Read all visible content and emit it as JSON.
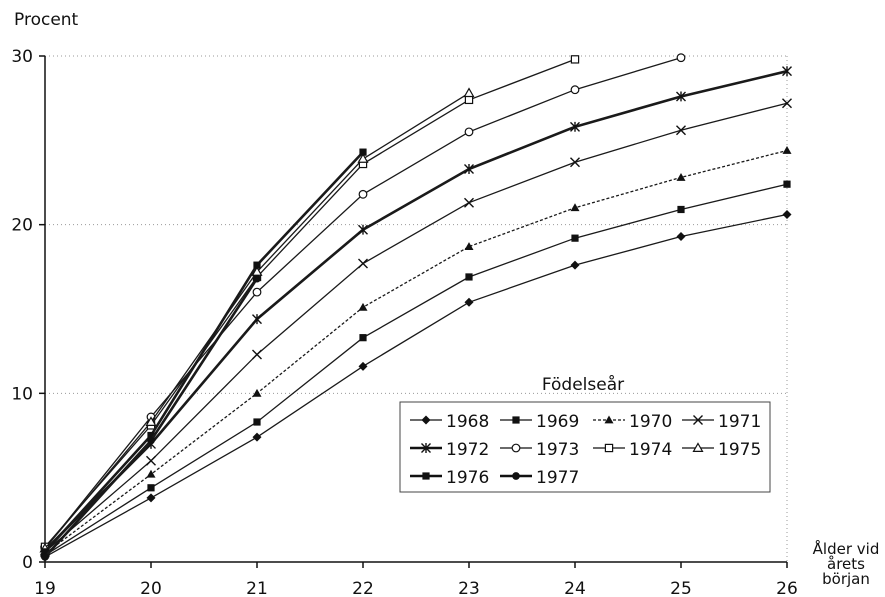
{
  "chart_data": {
    "type": "line",
    "ylabel": "Procent",
    "xlabel": [
      "Ålder vid",
      "årets",
      "början"
    ],
    "x": [
      19,
      20,
      21,
      22,
      23,
      24,
      25,
      26
    ],
    "xlim": [
      19,
      26
    ],
    "ylim": [
      0,
      30
    ],
    "yticks": [
      0,
      10,
      20,
      30
    ],
    "xticks": [
      19,
      20,
      21,
      22,
      23,
      24,
      25,
      26
    ],
    "grid": true,
    "legend": {
      "title": "Födelseår",
      "placement": "center-right"
    },
    "series": [
      {
        "name": "1968",
        "marker": "diamond",
        "style": "solid",
        "values": [
          0.3,
          3.8,
          7.4,
          11.6,
          15.4,
          17.6,
          19.3,
          20.6
        ]
      },
      {
        "name": "1969",
        "marker": "square",
        "style": "solid",
        "values": [
          0.4,
          4.4,
          8.3,
          13.3,
          16.9,
          19.2,
          20.9,
          22.4
        ]
      },
      {
        "name": "1970",
        "marker": "triangle",
        "style": "dotted",
        "values": [
          0.5,
          5.2,
          10.0,
          15.1,
          18.7,
          21.0,
          22.8,
          24.4
        ]
      },
      {
        "name": "1971",
        "marker": "x",
        "style": "solid",
        "values": [
          0.6,
          6.0,
          12.3,
          17.7,
          21.3,
          23.7,
          25.6,
          27.2
        ]
      },
      {
        "name": "1972",
        "marker": "star",
        "style": "solid-bold",
        "values": [
          0.7,
          7.0,
          14.4,
          19.7,
          23.3,
          25.8,
          27.6,
          29.1
        ]
      },
      {
        "name": "1973",
        "marker": "circle-open",
        "style": "solid",
        "values": [
          0.8,
          8.6,
          16.0,
          21.8,
          25.5,
          28.0,
          29.9,
          null
        ]
      },
      {
        "name": "1974",
        "marker": "square-open",
        "style": "solid",
        "values": [
          0.9,
          8.1,
          16.9,
          23.6,
          27.4,
          29.8,
          null,
          null
        ]
      },
      {
        "name": "1975",
        "marker": "triangle-open",
        "style": "solid",
        "values": [
          0.8,
          8.3,
          17.2,
          23.9,
          27.8,
          null,
          null,
          null
        ]
      },
      {
        "name": "1976",
        "marker": "square",
        "style": "solid-bold",
        "values": [
          0.6,
          7.5,
          17.6,
          24.3,
          null,
          null,
          null,
          null
        ]
      },
      {
        "name": "1977",
        "marker": "circle",
        "style": "solid-bold",
        "values": [
          0.3,
          7.2,
          16.8,
          null,
          null,
          null,
          null,
          null
        ]
      }
    ]
  }
}
